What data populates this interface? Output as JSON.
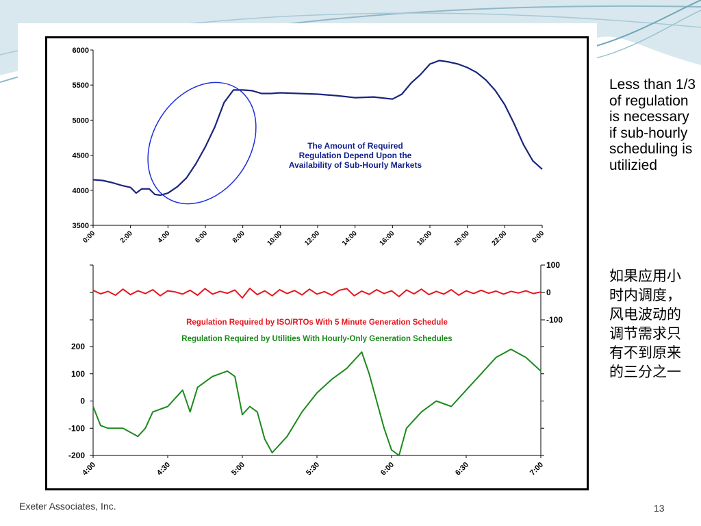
{
  "side_note": {
    "english": "Less than 1/3 of regulation is necessary if sub-hourly scheduling is utilizied",
    "chinese": "如果应用小时内调度，风电波动的调节需求只有不到原来的三分之一"
  },
  "footer": {
    "company": "Exeter Associates, Inc.",
    "page_number": "13"
  },
  "colors": {
    "navy_line": "#1a237e",
    "highlight_ellipse": "#1f2fd6",
    "red_series": "#e8141c",
    "green_series": "#1b8a1b",
    "annotation_text": "#12208c",
    "slide_teal": "#6fa6b8"
  },
  "chart_data": [
    {
      "type": "line",
      "title": "",
      "annotation": "The Amount of Required Regulation Depend Upon the Availability of Sub-Hourly Markets",
      "annotation_lines": [
        "The Amount of Required",
        "Regulation Depend Upon the",
        "Availability of Sub-Hourly Markets"
      ],
      "highlight": "ellipse around the 3:00-8:00 ramp",
      "ylim": [
        3500,
        6000
      ],
      "yticks": [
        3500,
        4000,
        4500,
        5000,
        5500,
        6000
      ],
      "ytick_labels": [
        "3500",
        "4000",
        "4500",
        "5000",
        "5500",
        "6000"
      ],
      "xlim": [
        0,
        24
      ],
      "xtick_values": [
        0,
        2,
        4,
        6,
        8,
        10,
        12,
        14,
        16,
        18,
        20,
        22,
        24
      ],
      "xtick_labels": [
        "0:00",
        "2:00",
        "4:00",
        "6:00",
        "8:00",
        "10:00",
        "12:00",
        "14:00",
        "16:00",
        "18:00",
        "20:00",
        "22:00",
        "0:00"
      ],
      "series": [
        {
          "x": [
            0,
            0.5,
            1,
            1.5,
            2,
            2.3,
            2.6,
            3,
            3.3,
            3.6,
            4,
            4.5,
            5,
            5.5,
            6,
            6.5,
            7,
            7.5,
            8,
            8.5,
            9,
            9.5,
            10,
            11,
            12,
            13,
            14,
            15,
            16,
            16.5,
            17,
            17.5,
            18,
            18.5,
            19,
            19.5,
            20,
            20.5,
            21,
            21.5,
            22,
            22.5,
            23,
            23.5,
            24
          ],
          "y": [
            4150,
            4140,
            4110,
            4070,
            4040,
            3960,
            4020,
            4020,
            3940,
            3930,
            3960,
            4050,
            4180,
            4380,
            4620,
            4900,
            5250,
            5430,
            5430,
            5420,
            5380,
            5380,
            5390,
            5380,
            5370,
            5350,
            5320,
            5330,
            5300,
            5370,
            5530,
            5650,
            5800,
            5850,
            5830,
            5800,
            5750,
            5680,
            5570,
            5420,
            5220,
            4950,
            4650,
            4420,
            4300
          ]
        }
      ]
    },
    {
      "type": "line",
      "title": "",
      "xlim": [
        4,
        7
      ],
      "xtick_values": [
        4,
        4.5,
        5,
        5.5,
        6,
        6.5,
        7
      ],
      "xtick_labels": [
        "4:00",
        "4:30",
        "5:00",
        "5:30",
        "6:00",
        "6:30",
        "7:00"
      ],
      "y_left": {
        "ylim": [
          -200,
          200
        ],
        "ticks": [
          -200,
          -100,
          0,
          100,
          200
        ],
        "tick_labels": [
          "-200",
          "-100",
          "0",
          "100",
          "200"
        ]
      },
      "y_right": {
        "ylim": [
          -100,
          100
        ],
        "ticks": [
          -100,
          0,
          100
        ],
        "tick_labels": [
          "-100",
          "0",
          "100"
        ]
      },
      "series": [
        {
          "name": "Regulation Required by ISO/RTOs With 5 Minute Generation Schedule",
          "axis": "right",
          "x": [
            4,
            4.05,
            4.1,
            4.15,
            4.2,
            4.25,
            4.3,
            4.35,
            4.4,
            4.45,
            4.5,
            4.55,
            4.6,
            4.65,
            4.7,
            4.75,
            4.8,
            4.85,
            4.9,
            4.95,
            5,
            5.05,
            5.1,
            5.15,
            5.2,
            5.25,
            5.3,
            5.35,
            5.4,
            5.45,
            5.5,
            5.55,
            5.6,
            5.65,
            5.7,
            5.75,
            5.8,
            5.85,
            5.9,
            5.95,
            6,
            6.05,
            6.1,
            6.15,
            6.2,
            6.25,
            6.3,
            6.35,
            6.4,
            6.45,
            6.5,
            6.55,
            6.6,
            6.65,
            6.7,
            6.75,
            6.8,
            6.85,
            6.9,
            6.95,
            7
          ],
          "y": [
            8,
            -5,
            4,
            -10,
            12,
            -8,
            6,
            -4,
            10,
            -12,
            6,
            2,
            -6,
            8,
            -10,
            14,
            -6,
            4,
            -3,
            9,
            -20,
            15,
            -8,
            6,
            -12,
            10,
            -4,
            7,
            -9,
            12,
            -6,
            3,
            -10,
            8,
            14,
            -12,
            5,
            -7,
            10,
            -4,
            6,
            -15,
            9,
            -5,
            12,
            -8,
            4,
            -6,
            10,
            -10,
            6,
            -4,
            8,
            -3,
            5,
            -6,
            4,
            -2,
            6,
            -4,
            2
          ]
        },
        {
          "name": "Regulation Required by Utilities With Hourly-Only Generation Schedules",
          "axis": "left",
          "x": [
            4,
            4.05,
            4.1,
            4.2,
            4.3,
            4.35,
            4.4,
            4.5,
            4.6,
            4.65,
            4.7,
            4.8,
            4.9,
            4.95,
            5,
            5.05,
            5.1,
            5.15,
            5.2,
            5.3,
            5.4,
            5.5,
            5.6,
            5.7,
            5.8,
            5.85,
            5.9,
            5.95,
            6,
            6.05,
            6.1,
            6.2,
            6.3,
            6.4,
            6.5,
            6.6,
            6.7,
            6.8,
            6.9,
            7
          ],
          "y": [
            -20,
            -90,
            -100,
            -100,
            -130,
            -100,
            -40,
            -20,
            40,
            -40,
            50,
            90,
            110,
            90,
            -50,
            -20,
            -40,
            -140,
            -190,
            -130,
            -40,
            30,
            80,
            120,
            180,
            100,
            0,
            -100,
            -180,
            -200,
            -100,
            -40,
            0,
            -20,
            40,
            100,
            160,
            190,
            160,
            110
          ]
        }
      ]
    }
  ]
}
